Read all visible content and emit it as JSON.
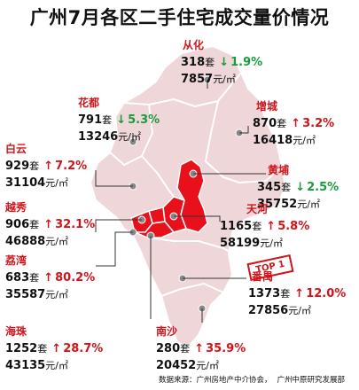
{
  "title": "广州7月各区二手住宅成交量价情况",
  "colors": {
    "region_fill": "#efd6d8",
    "hot_fill": "#e8101b",
    "border": "#ffffff",
    "accent": "#d0141a",
    "down": "#1a9a3c"
  },
  "districts": [
    {
      "id": "conghua",
      "name": "从化",
      "volume": "318",
      "vol_unit": "套",
      "direction": "down",
      "arrow": "↓",
      "change": "1.9%",
      "price": "7857",
      "price_unit": "元/㎡"
    },
    {
      "id": "huadu",
      "name": "花都",
      "volume": "791",
      "vol_unit": "套",
      "direction": "down",
      "arrow": "↓",
      "change": "5.3%",
      "price": "13246",
      "price_unit": "元/㎡"
    },
    {
      "id": "zengcheng",
      "name": "增城",
      "volume": "870",
      "vol_unit": "套",
      "direction": "up",
      "arrow": "↑",
      "change": "3.2%",
      "price": "16418",
      "price_unit": "元/㎡"
    },
    {
      "id": "baiyun",
      "name": "白云",
      "volume": "929",
      "vol_unit": "套",
      "direction": "up",
      "arrow": "↑",
      "change": "7.2%",
      "price": "31104",
      "price_unit": "元/㎡"
    },
    {
      "id": "huangpu",
      "name": "黄埔",
      "volume": "345",
      "vol_unit": "套",
      "direction": "down",
      "arrow": "↓",
      "change": "2.5%",
      "price": "35752",
      "price_unit": "元/㎡"
    },
    {
      "id": "yuexiu",
      "name": "越秀",
      "volume": "906",
      "vol_unit": "套",
      "direction": "up",
      "arrow": "↑",
      "change": "32.1%",
      "price": "46888",
      "price_unit": "元/㎡"
    },
    {
      "id": "tianhe",
      "name": "天河",
      "volume": "1165",
      "vol_unit": "套",
      "direction": "up",
      "arrow": "↑",
      "change": "5.8%",
      "price": "58199",
      "price_unit": "元/㎡"
    },
    {
      "id": "liwan",
      "name": "荔湾",
      "volume": "683",
      "vol_unit": "套",
      "direction": "up",
      "arrow": "↑",
      "change": "80.2%",
      "price": "35587",
      "price_unit": "元/㎡"
    },
    {
      "id": "panyu",
      "name": "番禺",
      "volume": "1373",
      "vol_unit": "套",
      "direction": "up",
      "arrow": "↑",
      "change": "12.0%",
      "price": "27856",
      "price_unit": "元/㎡"
    },
    {
      "id": "haizhu",
      "name": "海珠",
      "volume": "1252",
      "vol_unit": "套",
      "direction": "up",
      "arrow": "↑",
      "change": "28.7%",
      "price": "43135",
      "price_unit": "元/㎡"
    },
    {
      "id": "nansha",
      "name": "南沙",
      "volume": "280",
      "vol_unit": "套",
      "direction": "up",
      "arrow": "↑",
      "change": "35.9%",
      "price": "20452",
      "price_unit": "元/㎡"
    }
  ],
  "top_badge": "TOP 1",
  "footer": {
    "source_label": "数据来源：",
    "source1": "广州房地产中介协会，",
    "source2": "广州中原研究发展部"
  }
}
